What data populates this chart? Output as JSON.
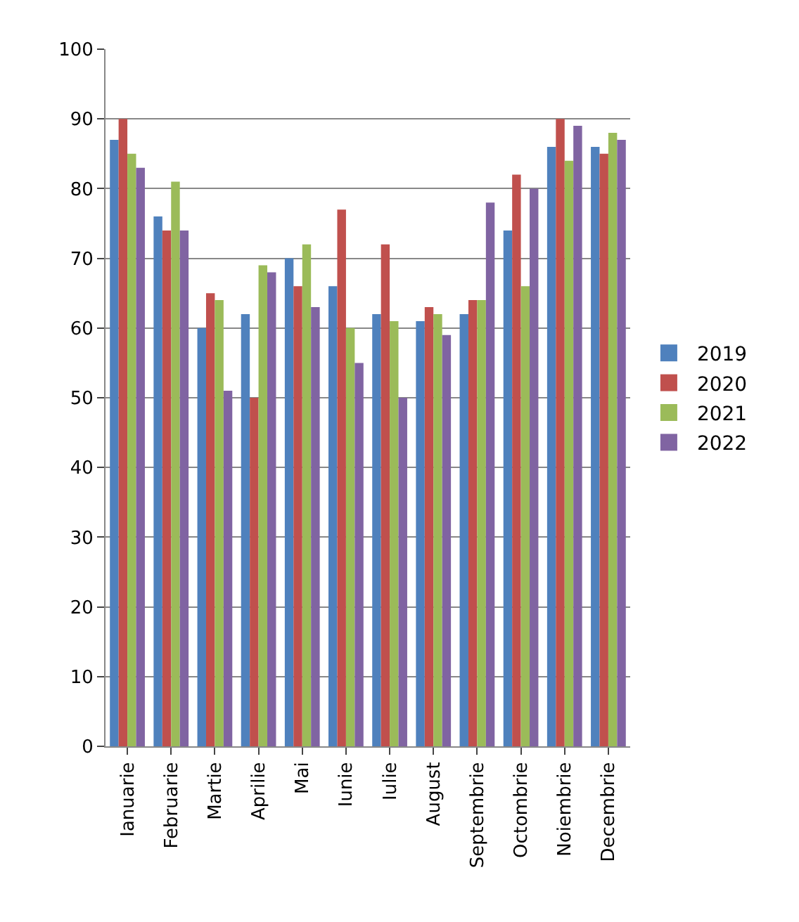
{
  "chart_data": {
    "type": "bar",
    "categories": [
      "Ianuarie",
      "Februarie",
      "Martie",
      "Aprilie",
      "Mai",
      "Iunie",
      "Iulie",
      "August",
      "Septembrie",
      "Octombrie",
      "Noiembrie",
      "Decembrie"
    ],
    "series": [
      {
        "name": "2019",
        "color": "#4f81bd",
        "values": [
          87,
          76,
          60,
          62,
          70,
          66,
          62,
          61,
          62,
          74,
          86,
          86
        ]
      },
      {
        "name": "2020",
        "color": "#c0504d",
        "values": [
          90,
          74,
          65,
          50,
          66,
          77,
          72,
          63,
          64,
          82,
          90,
          85
        ]
      },
      {
        "name": "2021",
        "color": "#9bbb59",
        "values": [
          85,
          81,
          64,
          69,
          72,
          60,
          61,
          62,
          64,
          66,
          84,
          88
        ]
      },
      {
        "name": "2022",
        "color": "#8064a2",
        "values": [
          83,
          74,
          51,
          68,
          63,
          55,
          50,
          59,
          78,
          80,
          89,
          87
        ]
      }
    ],
    "ylim": [
      0,
      100
    ],
    "yticks": [
      0,
      10,
      20,
      30,
      40,
      50,
      60,
      70,
      80,
      90,
      100
    ],
    "grid": "y",
    "legend": "right"
  }
}
